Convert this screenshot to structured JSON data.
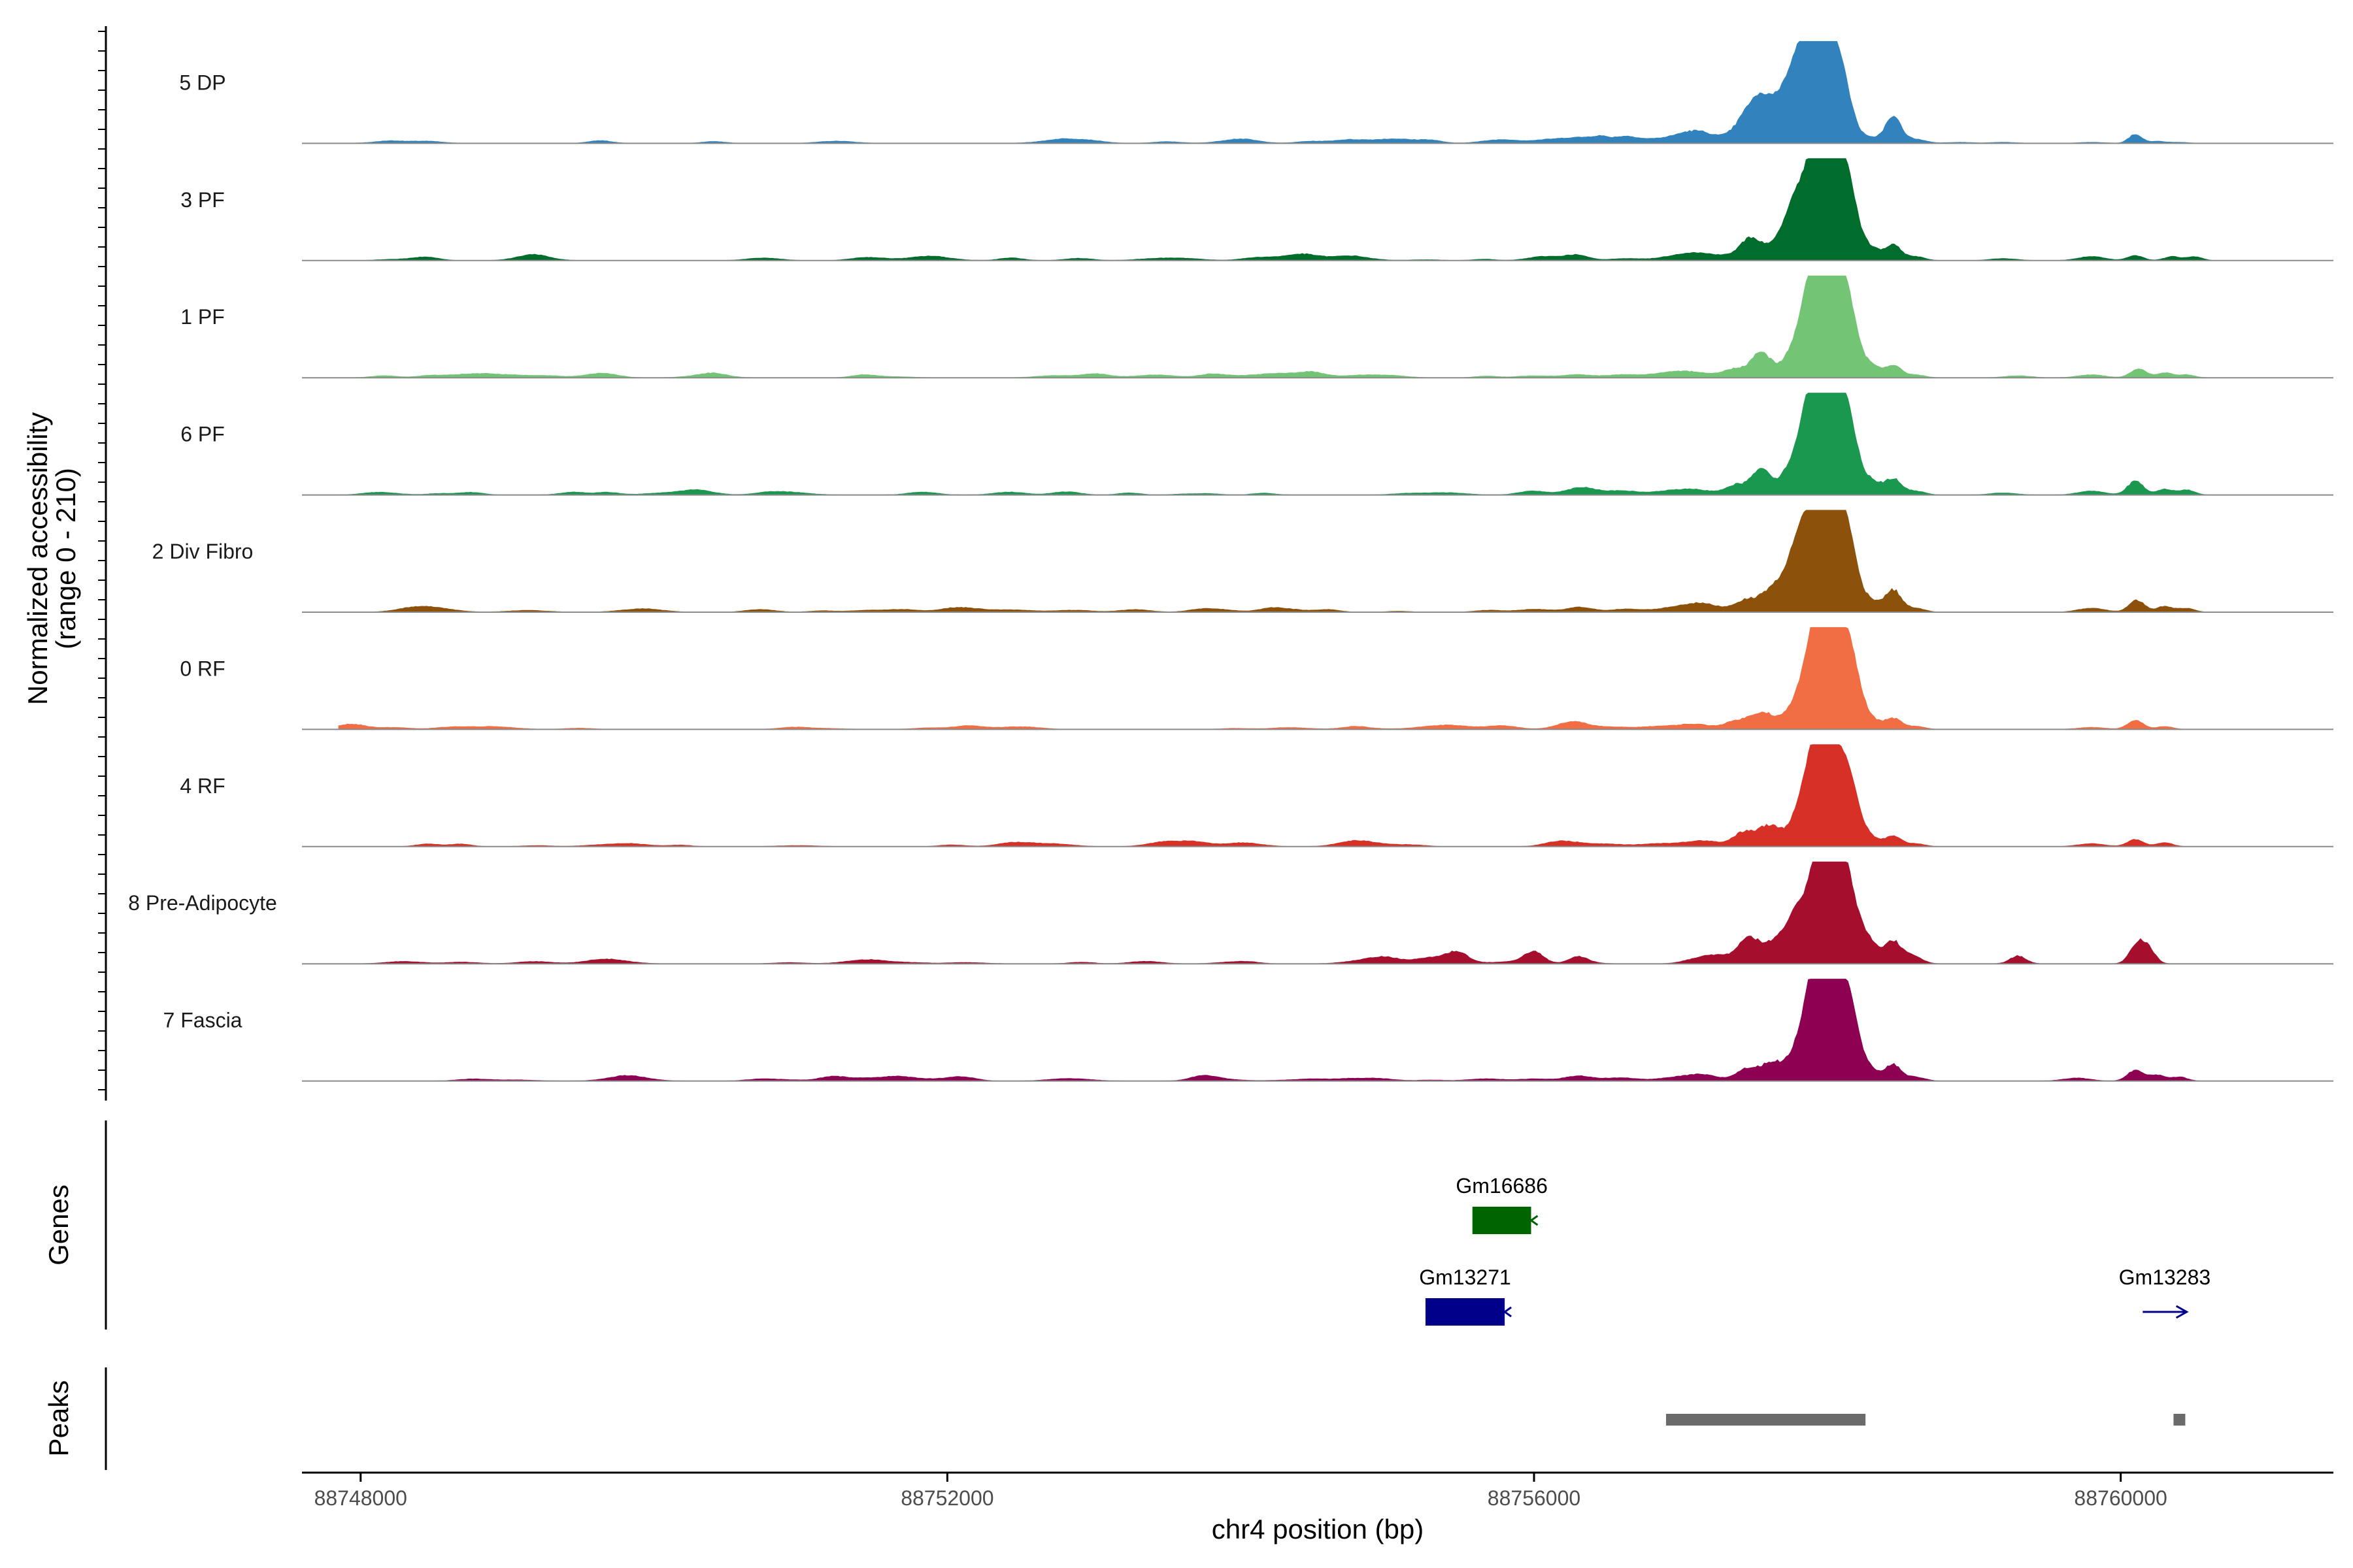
{
  "chart_data": {
    "type": "area",
    "title": "",
    "ylabel_line1": "Normalized accessibility",
    "ylabel_line2": "(range 0 - 210)",
    "ylim": [
      0,
      210
    ],
    "xlabel": "chr4 position (bp)",
    "xlim": [
      88747600,
      88761450
    ],
    "x_ticks": [
      {
        "value": 88748000,
        "label": "88748000"
      },
      {
        "value": 88752000,
        "label": "88752000"
      },
      {
        "value": 88756000,
        "label": "88756000"
      },
      {
        "value": 88760000,
        "label": "88760000"
      }
    ],
    "series": [
      {
        "name": "5 DP",
        "color": "#3182bd",
        "peaks": [
          [
            88756980,
            5,
            1.4
          ],
          [
            88756800,
            2,
            0.9
          ],
          [
            88756620,
            7,
            1.0
          ],
          [
            88756450,
            4,
            0.6
          ],
          [
            88756260,
            2,
            1.2
          ],
          [
            88756080,
            3,
            1.1
          ],
          [
            88757130,
            10,
            1.3
          ],
          [
            88757480,
            19,
            1.1
          ],
          [
            88757600,
            38,
            1.4
          ],
          [
            88757800,
            72,
            0.9
          ],
          [
            88757900,
            100,
            0.6
          ],
          [
            88758000,
            88,
            0.9
          ],
          [
            88758100,
            45,
            0.8
          ],
          [
            88758300,
            5,
            0.8
          ],
          [
            88758450,
            26,
            0.6
          ],
          [
            88758600,
            4,
            0.8
          ],
          [
            88758900,
            1,
            1.0
          ],
          [
            88759200,
            1,
            1.0
          ],
          [
            88759800,
            1,
            1.0
          ],
          [
            88760100,
            9,
            0.5
          ],
          [
            88760250,
            2,
            0.6
          ],
          [
            88760400,
            1,
            0.7
          ]
        ]
      },
      {
        "name": "3 PF",
        "color": "#006d2c",
        "peaks": [
          [
            88756900,
            2,
            1.2
          ],
          [
            88756620,
            2,
            1.1
          ],
          [
            88756300,
            3,
            0.9
          ],
          [
            88756050,
            2,
            1.0
          ],
          [
            88757080,
            7,
            1.3
          ],
          [
            88757300,
            4,
            1.2
          ],
          [
            88757480,
            22,
            0.8
          ],
          [
            88757650,
            12,
            0.8
          ],
          [
            88757760,
            30,
            0.8
          ],
          [
            88757850,
            55,
            0.9
          ],
          [
            88757950,
            98,
            0.7
          ],
          [
            88758050,
            92,
            0.8
          ],
          [
            88758150,
            55,
            0.7
          ],
          [
            88758300,
            12,
            0.7
          ],
          [
            88758450,
            15,
            0.6
          ],
          [
            88758600,
            4,
            0.7
          ],
          [
            88759200,
            2,
            1.0
          ],
          [
            88759800,
            4,
            1.0
          ],
          [
            88760100,
            5,
            0.6
          ],
          [
            88760350,
            4,
            0.6
          ],
          [
            88760500,
            4,
            0.6
          ]
        ]
      },
      {
        "name": "1 PF",
        "color": "#74c476",
        "peaks": [
          [
            88756900,
            4,
            1.4
          ],
          [
            88756600,
            3,
            1.2
          ],
          [
            88756300,
            3,
            1.1
          ],
          [
            88756000,
            2,
            1.3
          ],
          [
            88757100,
            5,
            1.4
          ],
          [
            88757380,
            9,
            0.9
          ],
          [
            88757550,
            26,
            0.7
          ],
          [
            88757720,
            13,
            0.7
          ],
          [
            88757850,
            52,
            0.8
          ],
          [
            88757950,
            102,
            0.8
          ],
          [
            88758050,
            92,
            0.8
          ],
          [
            88758150,
            52,
            0.7
          ],
          [
            88758300,
            12,
            0.7
          ],
          [
            88758450,
            12,
            0.6
          ],
          [
            88758600,
            3,
            0.7
          ],
          [
            88759300,
            2,
            1.0
          ],
          [
            88759800,
            3,
            1.0
          ],
          [
            88760120,
            9,
            0.6
          ],
          [
            88760300,
            5,
            0.6
          ],
          [
            88760450,
            3,
            0.6
          ]
        ]
      },
      {
        "name": "6 PF",
        "color": "#1a9850",
        "peaks": [
          [
            88756900,
            3,
            1.3
          ],
          [
            88756600,
            4,
            1.2
          ],
          [
            88756300,
            4,
            1.0
          ],
          [
            88756000,
            3,
            1.1
          ],
          [
            88757100,
            5,
            1.4
          ],
          [
            88757380,
            10,
            0.8
          ],
          [
            88757550,
            27,
            0.7
          ],
          [
            88757720,
            16,
            0.7
          ],
          [
            88757850,
            58,
            0.8
          ],
          [
            88757950,
            100,
            0.8
          ],
          [
            88758050,
            90,
            0.8
          ],
          [
            88758150,
            55,
            0.7
          ],
          [
            88758300,
            14,
            0.7
          ],
          [
            88758450,
            16,
            0.6
          ],
          [
            88758600,
            4,
            0.7
          ],
          [
            88759200,
            2,
            1.0
          ],
          [
            88759800,
            4,
            1.0
          ],
          [
            88760100,
            14,
            0.6
          ],
          [
            88760300,
            6,
            0.6
          ],
          [
            88760450,
            5,
            0.6
          ]
        ]
      },
      {
        "name": "2 Div Fibro",
        "color": "#8c510a",
        "peaks": [
          [
            88756950,
            4,
            1.4
          ],
          [
            88756620,
            3,
            1.2
          ],
          [
            88756300,
            3,
            1.0
          ],
          [
            88756000,
            2,
            1.1
          ],
          [
            88757150,
            8,
            1.3
          ],
          [
            88757450,
            12,
            0.9
          ],
          [
            88757620,
            20,
            0.8
          ],
          [
            88757760,
            38,
            0.8
          ],
          [
            88757860,
            68,
            0.8
          ],
          [
            88757960,
            100,
            0.7
          ],
          [
            88758060,
            82,
            0.8
          ],
          [
            88758150,
            50,
            0.7
          ],
          [
            88758300,
            11,
            0.7
          ],
          [
            88758450,
            22,
            0.6
          ],
          [
            88758600,
            4,
            0.7
          ],
          [
            88759800,
            4,
            1.0
          ],
          [
            88760110,
            12,
            0.6
          ],
          [
            88760300,
            6,
            0.6
          ],
          [
            88760450,
            4,
            0.6
          ]
        ]
      },
      {
        "name": "0 RF",
        "color": "#f16d43",
        "peaks": [
          [
            88756850,
            3,
            1.4
          ],
          [
            88756550,
            2,
            1.2
          ],
          [
            88756250,
            2,
            1.1
          ],
          [
            88757100,
            5,
            1.2
          ],
          [
            88757380,
            8,
            0.9
          ],
          [
            88757560,
            17,
            0.9
          ],
          [
            88757760,
            14,
            0.8
          ],
          [
            88757880,
            58,
            0.8
          ],
          [
            88757970,
            100,
            0.7
          ],
          [
            88758070,
            90,
            0.8
          ],
          [
            88758170,
            50,
            0.7
          ],
          [
            88758300,
            9,
            0.7
          ],
          [
            88758450,
            11,
            0.6
          ],
          [
            88758600,
            3,
            0.7
          ],
          [
            88759800,
            2,
            1.0
          ],
          [
            88760100,
            9,
            0.6
          ],
          [
            88760300,
            3,
            0.6
          ]
        ]
      },
      {
        "name": "4 RF",
        "color": "#d73027",
        "peaks": [
          [
            88756850,
            3,
            1.4
          ],
          [
            88756520,
            2,
            1.2
          ],
          [
            88756220,
            2,
            1.1
          ],
          [
            88757150,
            6,
            1.3
          ],
          [
            88757430,
            14,
            0.8
          ],
          [
            88757600,
            20,
            0.8
          ],
          [
            88757760,
            12,
            0.8
          ],
          [
            88757880,
            72,
            0.8
          ],
          [
            88757970,
            100,
            0.6
          ],
          [
            88758060,
            74,
            0.7
          ],
          [
            88758160,
            55,
            0.7
          ],
          [
            88758300,
            8,
            0.7
          ],
          [
            88758450,
            10,
            0.6
          ],
          [
            88758600,
            3,
            0.7
          ],
          [
            88759800,
            3,
            1.0
          ],
          [
            88760100,
            7,
            0.6
          ],
          [
            88760300,
            4,
            0.6
          ]
        ]
      },
      {
        "name": "8 Pre-Adipocyte",
        "color": "#a50f2d",
        "peaks": [
          [
            88755480,
            11,
            0.8
          ],
          [
            88756000,
            9,
            0.7
          ],
          [
            88756300,
            7,
            0.7
          ],
          [
            88757100,
            4,
            1.0
          ],
          [
            88757250,
            8,
            1.0
          ],
          [
            88757460,
            26,
            0.8
          ],
          [
            88757620,
            16,
            0.8
          ],
          [
            88757750,
            28,
            0.8
          ],
          [
            88757850,
            48,
            0.8
          ],
          [
            88757950,
            95,
            0.6
          ],
          [
            88758030,
            60,
            0.7
          ],
          [
            88758100,
            70,
            0.6
          ],
          [
            88758180,
            44,
            0.7
          ],
          [
            88758300,
            18,
            0.7
          ],
          [
            88758450,
            22,
            0.6
          ],
          [
            88758580,
            8,
            0.7
          ],
          [
            88759300,
            8,
            0.6
          ],
          [
            88760120,
            22,
            0.6
          ],
          [
            88760200,
            10,
            0.5
          ]
        ]
      },
      {
        "name": "7 Fascia",
        "color": "#8e0152",
        "peaks": [
          [
            88756950,
            3,
            1.3
          ],
          [
            88756600,
            3,
            1.2
          ],
          [
            88756300,
            3,
            1.0
          ],
          [
            88756000,
            2,
            1.2
          ],
          [
            88757150,
            6,
            1.2
          ],
          [
            88757450,
            12,
            0.8
          ],
          [
            88757620,
            18,
            0.8
          ],
          [
            88757770,
            10,
            0.8
          ],
          [
            88757880,
            62,
            0.9
          ],
          [
            88757960,
            102,
            0.7
          ],
          [
            88758060,
            88,
            0.8
          ],
          [
            88758160,
            56,
            0.7
          ],
          [
            88758300,
            10,
            0.7
          ],
          [
            88758450,
            16,
            0.6
          ],
          [
            88758600,
            4,
            0.7
          ],
          [
            88759700,
            3,
            1.0
          ],
          [
            88760100,
            11,
            0.6
          ],
          [
            88760250,
            6,
            0.6
          ],
          [
            88760400,
            4,
            0.6
          ]
        ]
      }
    ],
    "genes": {
      "title": "Genes",
      "items": [
        {
          "name": "Gm16686",
          "start": 88755580,
          "end": 88755980,
          "color": "#006400",
          "glyph": "‹"
        },
        {
          "name": "Gm13271",
          "start": 88755260,
          "end": 88755800,
          "color": "#00008b",
          "glyph": "‹"
        },
        {
          "name": "Gm13283",
          "start": 88760150,
          "end": 88760450,
          "color": "#00008b",
          "glyph": "⟶"
        }
      ]
    },
    "peaks_track": {
      "title": "Peaks",
      "color": "#6b6b6b",
      "regions": [
        {
          "start": 88756900,
          "end": 88758260
        },
        {
          "start": 88760360,
          "end": 88760440
        }
      ]
    }
  }
}
